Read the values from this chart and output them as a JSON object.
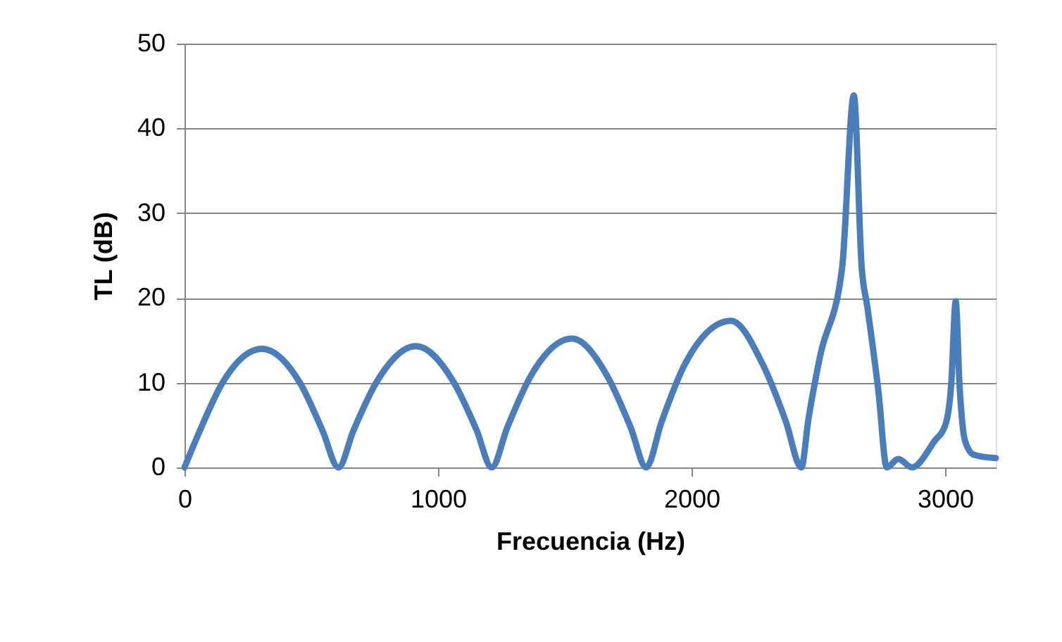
{
  "chart_data": {
    "type": "line",
    "xlabel": "Frecuencia (Hz)",
    "ylabel": "TL (dB)",
    "xlim": [
      0,
      3200
    ],
    "xticks": [
      0,
      1000,
      2000,
      3000
    ],
    "ylim": [
      0,
      50
    ],
    "yticks": [
      0,
      10,
      20,
      30,
      40,
      50
    ],
    "grid": "y",
    "marker": "none",
    "line_style": "solid",
    "series": [
      {
        "color": "#4a7ebb",
        "x": [
          0,
          60,
          150,
          305,
          455,
          545,
          607,
          667,
          758,
          912,
          1061,
          1152,
          1212,
          1273,
          1364,
          1528,
          1669,
          1760,
          1821,
          1882,
          1974,
          2155,
          2280,
          2372,
          2433,
          2461,
          2506,
          2594,
          2640,
          2671,
          2693,
          2737,
          2770,
          2815,
          2870,
          2958,
          3002,
          3024,
          3042,
          3057,
          3079,
          3113,
          3200
        ],
        "values": [
          0,
          4.3,
          10,
          14,
          10,
          4.3,
          0,
          4.4,
          10.1,
          14.3,
          10.1,
          4.4,
          0,
          4.7,
          10.7,
          15.2,
          10.7,
          4.7,
          0,
          5.4,
          12.2,
          17.3,
          12.2,
          5.4,
          0,
          5.7,
          13,
          23.6,
          43.9,
          23.6,
          19,
          9,
          0,
          1,
          0,
          3.1,
          5.1,
          9.7,
          19.6,
          9.7,
          3.1,
          1.5,
          1.1
        ]
      }
    ]
  }
}
